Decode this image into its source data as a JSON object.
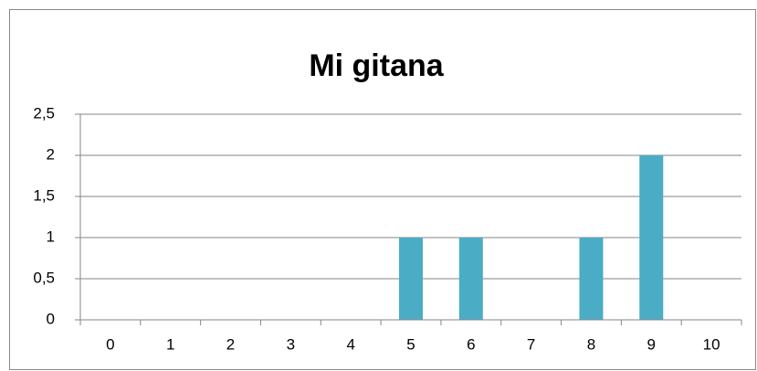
{
  "chart_data": {
    "type": "bar",
    "title": "Mi gitana",
    "categories": [
      "0",
      "1",
      "2",
      "3",
      "4",
      "5",
      "6",
      "7",
      "8",
      "9",
      "10"
    ],
    "values": [
      0,
      0,
      0,
      0,
      0,
      1,
      1,
      0,
      1,
      2,
      0
    ],
    "color": "#4bacc6",
    "ylim": [
      0,
      2.5
    ],
    "yticks": [
      0,
      {
        "value": 0.5,
        "label": "0,5"
      },
      1,
      {
        "value": 1.5,
        "label": "1,5"
      },
      2,
      {
        "value": 2.5,
        "label": "2,5"
      }
    ],
    "grid": true
  }
}
